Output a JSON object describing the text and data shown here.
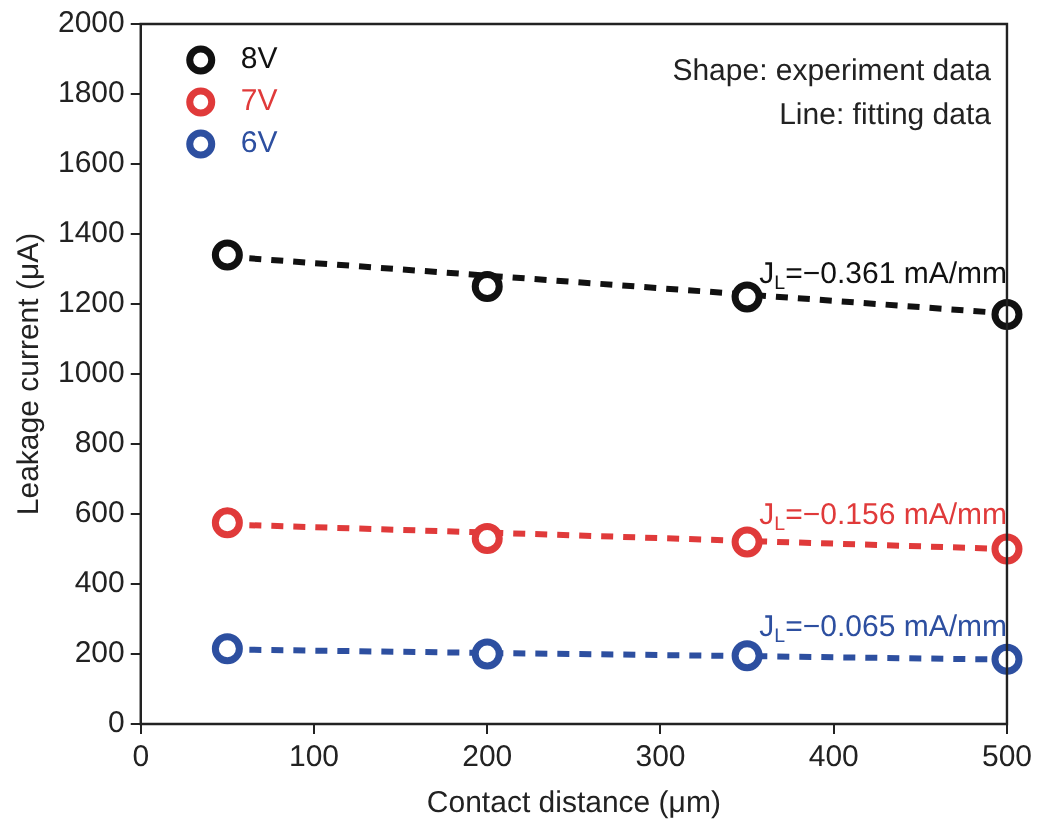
{
  "chart_data": {
    "type": "scatter",
    "xlabel": "Contact distance (μm)",
    "ylabel": "Leakage current (μA)",
    "x": [
      50,
      200,
      350,
      500
    ],
    "xlim": [
      0,
      500
    ],
    "xticks": [
      0,
      100,
      200,
      300,
      400,
      500
    ],
    "ylim": [
      0,
      2000
    ],
    "yticks": [
      0,
      200,
      400,
      600,
      800,
      1000,
      1200,
      1400,
      1600,
      1800,
      2000
    ],
    "grid": false,
    "legend": "top left",
    "marker": "circle",
    "series": [
      {
        "name": "8V",
        "color": "#111111",
        "values": [
          1340,
          1250,
          1220,
          1170
        ]
      },
      {
        "name": "7V",
        "color": "#e03a3a",
        "values": [
          575,
          530,
          520,
          500
        ]
      },
      {
        "name": "6V",
        "color": "#2d4fa0",
        "values": [
          215,
          200,
          195,
          185
        ]
      },
      {
        "name": "J$_{L}$=−0.361 mA/mm",
        "type": "line",
        "color": "#111111",
        "values": [
          1335,
          1281,
          1227,
          1173
        ],
        "marker": "none",
        "line_style": "dashed"
      },
      {
        "name": "J$_{L}$=−0.156 mA/mm",
        "type": "line",
        "color": "#e03a3a",
        "values": [
          570,
          547,
          523,
          500
        ],
        "marker": "none",
        "line_style": "dashed"
      },
      {
        "name": "J$_{L}$=−0.065 mA/mm",
        "type": "line",
        "color": "#2d4fa0",
        "values": [
          213,
          203,
          194,
          184
        ],
        "marker": "none",
        "line_style": "dashed"
      }
    ],
    "annotations": [
      "Shape: experiment data",
      "Line: fitting data"
    ]
  }
}
